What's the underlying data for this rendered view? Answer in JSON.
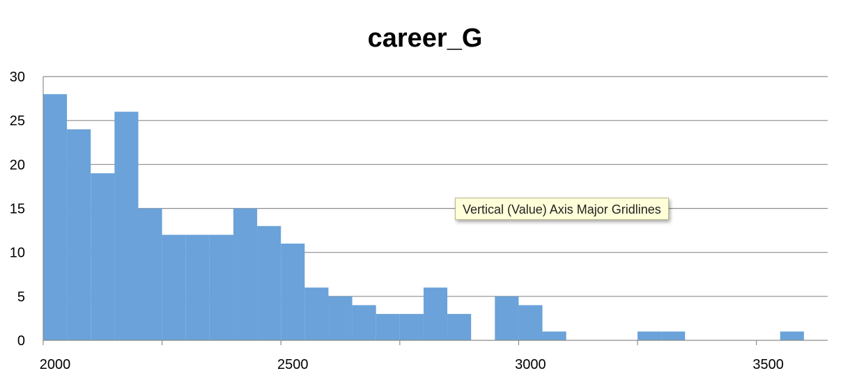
{
  "chart_data": {
    "type": "bar",
    "title": "career_G",
    "xlabel": "",
    "ylabel": "",
    "bin_width": 50,
    "x_range": [
      2000,
      3650
    ],
    "xticks": [
      2000,
      2500,
      3000,
      3500
    ],
    "ylim": [
      0,
      30
    ],
    "yticks": [
      0,
      5,
      10,
      15,
      20,
      25,
      30
    ],
    "grid": true,
    "legend": "none",
    "bar_color": "#6aa2d9",
    "bins": [
      {
        "x": 2000,
        "value": 28
      },
      {
        "x": 2050,
        "value": 24
      },
      {
        "x": 2100,
        "value": 19
      },
      {
        "x": 2150,
        "value": 26
      },
      {
        "x": 2200,
        "value": 15
      },
      {
        "x": 2250,
        "value": 12
      },
      {
        "x": 2300,
        "value": 12
      },
      {
        "x": 2350,
        "value": 12
      },
      {
        "x": 2400,
        "value": 15
      },
      {
        "x": 2450,
        "value": 13
      },
      {
        "x": 2500,
        "value": 11
      },
      {
        "x": 2550,
        "value": 6
      },
      {
        "x": 2600,
        "value": 5
      },
      {
        "x": 2650,
        "value": 4
      },
      {
        "x": 2700,
        "value": 3
      },
      {
        "x": 2750,
        "value": 3
      },
      {
        "x": 2800,
        "value": 6
      },
      {
        "x": 2850,
        "value": 3
      },
      {
        "x": 2900,
        "value": 0
      },
      {
        "x": 2950,
        "value": 5
      },
      {
        "x": 3000,
        "value": 4
      },
      {
        "x": 3050,
        "value": 1
      },
      {
        "x": 3100,
        "value": 0
      },
      {
        "x": 3150,
        "value": 0
      },
      {
        "x": 3200,
        "value": 0
      },
      {
        "x": 3250,
        "value": 1
      },
      {
        "x": 3300,
        "value": 1
      },
      {
        "x": 3350,
        "value": 0
      },
      {
        "x": 3400,
        "value": 0
      },
      {
        "x": 3450,
        "value": 0
      },
      {
        "x": 3500,
        "value": 0
      },
      {
        "x": 3550,
        "value": 1
      },
      {
        "x": 3600,
        "value": 0
      }
    ]
  },
  "tooltip": {
    "text": "Vertical (Value) Axis Major Gridlines"
  }
}
